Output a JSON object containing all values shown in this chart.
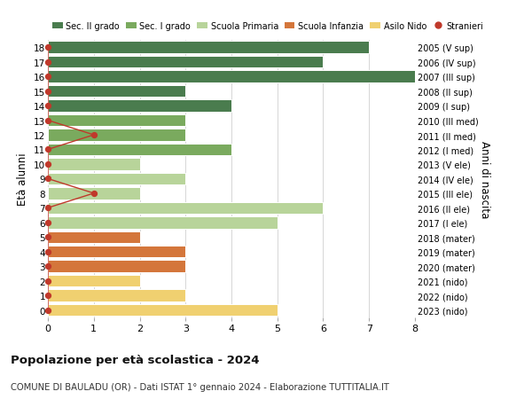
{
  "ages": [
    18,
    17,
    16,
    15,
    14,
    13,
    12,
    11,
    10,
    9,
    8,
    7,
    6,
    5,
    4,
    3,
    2,
    1,
    0
  ],
  "years": [
    "2005 (V sup)",
    "2006 (IV sup)",
    "2007 (III sup)",
    "2008 (II sup)",
    "2009 (I sup)",
    "2010 (III med)",
    "2011 (II med)",
    "2012 (I med)",
    "2013 (V ele)",
    "2014 (IV ele)",
    "2015 (III ele)",
    "2016 (II ele)",
    "2017 (I ele)",
    "2018 (mater)",
    "2019 (mater)",
    "2020 (mater)",
    "2021 (nido)",
    "2022 (nido)",
    "2023 (nido)"
  ],
  "bar_values": [
    7,
    6,
    8,
    3,
    4,
    3,
    3,
    4,
    2,
    3,
    2,
    6,
    5,
    2,
    3,
    3,
    2,
    3,
    5
  ],
  "bar_colors": [
    "#4a7c4e",
    "#4a7c4e",
    "#4a7c4e",
    "#4a7c4e",
    "#4a7c4e",
    "#7aaa5e",
    "#7aaa5e",
    "#7aaa5e",
    "#b8d49a",
    "#b8d49a",
    "#b8d49a",
    "#b8d49a",
    "#b8d49a",
    "#d4763b",
    "#d4763b",
    "#d4763b",
    "#f0d070",
    "#f0d070",
    "#f0d070"
  ],
  "stranieri_ages": [
    18,
    17,
    16,
    15,
    14,
    13,
    12,
    11,
    10,
    9,
    8,
    7,
    6,
    5,
    4,
    3,
    2,
    1,
    0
  ],
  "stranieri_values": [
    0,
    0,
    0,
    0,
    0,
    0,
    1,
    0,
    0,
    0,
    1,
    0,
    0,
    0,
    0,
    0,
    0,
    0,
    0
  ],
  "legend_labels": [
    "Sec. II grado",
    "Sec. I grado",
    "Scuola Primaria",
    "Scuola Infanzia",
    "Asilo Nido",
    "Stranieri"
  ],
  "legend_colors": [
    "#4a7c4e",
    "#7aaa5e",
    "#b8d49a",
    "#d4763b",
    "#f0d070",
    "#c0392b"
  ],
  "ylabel": "Età alunni",
  "right_ylabel": "Anni di nascita",
  "title": "Popolazione per età scolastica - 2024",
  "subtitle": "COMUNE DI BAULADU (OR) - Dati ISTAT 1° gennaio 2024 - Elaborazione TUTTITALIA.IT",
  "xlim": [
    0,
    8
  ],
  "ylim": [
    -0.5,
    18.5
  ],
  "stranieri_color": "#c0392b",
  "stranieri_line_color": "#c0392b",
  "background_color": "#ffffff",
  "grid_color": "#d0d0d0"
}
